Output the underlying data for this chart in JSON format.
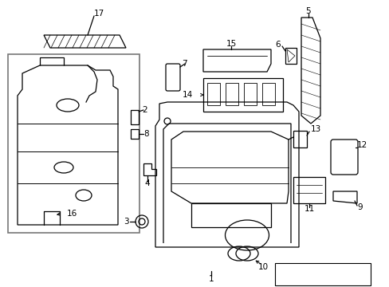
{
  "background": "#ffffff",
  "line_color": "#000000",
  "gray_box_color": "#888888",
  "fig_w": 4.89,
  "fig_h": 3.6,
  "dpi": 100
}
